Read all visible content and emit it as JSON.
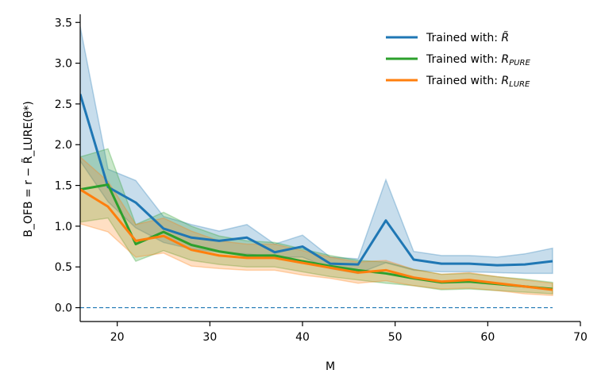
{
  "chart_data": {
    "type": "line",
    "title": "",
    "xlabel": "M",
    "ylabel": "B_OFB = r − R̃_LURE(θ*)",
    "xlim": [
      16,
      70
    ],
    "ylim": [
      -0.17,
      3.6
    ],
    "xticks": [
      20,
      30,
      40,
      50,
      60,
      70
    ],
    "yticks": [
      0.0,
      0.5,
      1.0,
      1.5,
      2.0,
      2.5,
      3.0,
      3.5
    ],
    "grid": false,
    "legend_position": "top-right",
    "reference_line": {
      "y": 0.0,
      "style": "dashed"
    },
    "x": [
      16,
      19,
      22,
      25,
      28,
      31,
      34,
      37,
      40,
      43,
      46,
      49,
      52,
      55,
      58,
      61,
      64,
      67
    ],
    "series": [
      {
        "name": "Trained with: R̃",
        "legend_text": "Trained with: ",
        "legend_math": "R̃",
        "color": "#1f77b4",
        "values": [
          2.62,
          1.48,
          1.29,
          0.97,
          0.86,
          0.82,
          0.86,
          0.68,
          0.75,
          0.54,
          0.53,
          1.07,
          0.59,
          0.54,
          0.54,
          0.52,
          0.53,
          0.57
        ],
        "lower": [
          1.8,
          1.3,
          0.98,
          0.8,
          0.72,
          0.68,
          0.66,
          0.62,
          0.62,
          0.48,
          0.42,
          0.55,
          0.46,
          0.44,
          0.44,
          0.43,
          0.42,
          0.42
        ],
        "upper": [
          3.45,
          1.7,
          1.56,
          1.12,
          1.02,
          0.94,
          1.02,
          0.78,
          0.89,
          0.62,
          0.6,
          1.57,
          0.69,
          0.64,
          0.64,
          0.62,
          0.66,
          0.73
        ]
      },
      {
        "name": "Trained with: R_PURE",
        "legend_text": "Trained with: ",
        "legend_math": "R",
        "legend_sub": "PURE",
        "color": "#2ca02c",
        "values": [
          1.45,
          1.51,
          0.78,
          0.93,
          0.77,
          0.69,
          0.64,
          0.64,
          0.57,
          0.51,
          0.46,
          0.42,
          0.36,
          0.31,
          0.32,
          0.29,
          0.26,
          0.23
        ],
        "lower": [
          1.05,
          1.1,
          0.57,
          0.7,
          0.58,
          0.53,
          0.5,
          0.5,
          0.44,
          0.38,
          0.34,
          0.3,
          0.27,
          0.22,
          0.23,
          0.21,
          0.19,
          0.17
        ],
        "upper": [
          1.85,
          1.95,
          1.02,
          1.17,
          1.0,
          0.88,
          0.82,
          0.8,
          0.72,
          0.64,
          0.58,
          0.56,
          0.47,
          0.41,
          0.42,
          0.38,
          0.35,
          0.31
        ]
      },
      {
        "name": "Trained with: R_LURE",
        "legend_text": "Trained with: ",
        "legend_math": "R",
        "legend_sub": "LURE",
        "color": "#ff7f0e",
        "values": [
          1.45,
          1.24,
          0.82,
          0.88,
          0.71,
          0.64,
          0.61,
          0.61,
          0.55,
          0.49,
          0.43,
          0.46,
          0.37,
          0.32,
          0.34,
          0.3,
          0.26,
          0.22
        ],
        "lower": [
          1.03,
          0.93,
          0.62,
          0.67,
          0.51,
          0.48,
          0.46,
          0.46,
          0.4,
          0.36,
          0.3,
          0.33,
          0.27,
          0.23,
          0.24,
          0.21,
          0.17,
          0.15
        ],
        "upper": [
          1.85,
          1.55,
          1.02,
          1.1,
          0.94,
          0.82,
          0.78,
          0.78,
          0.7,
          0.62,
          0.56,
          0.58,
          0.47,
          0.41,
          0.43,
          0.38,
          0.34,
          0.3
        ]
      }
    ]
  }
}
